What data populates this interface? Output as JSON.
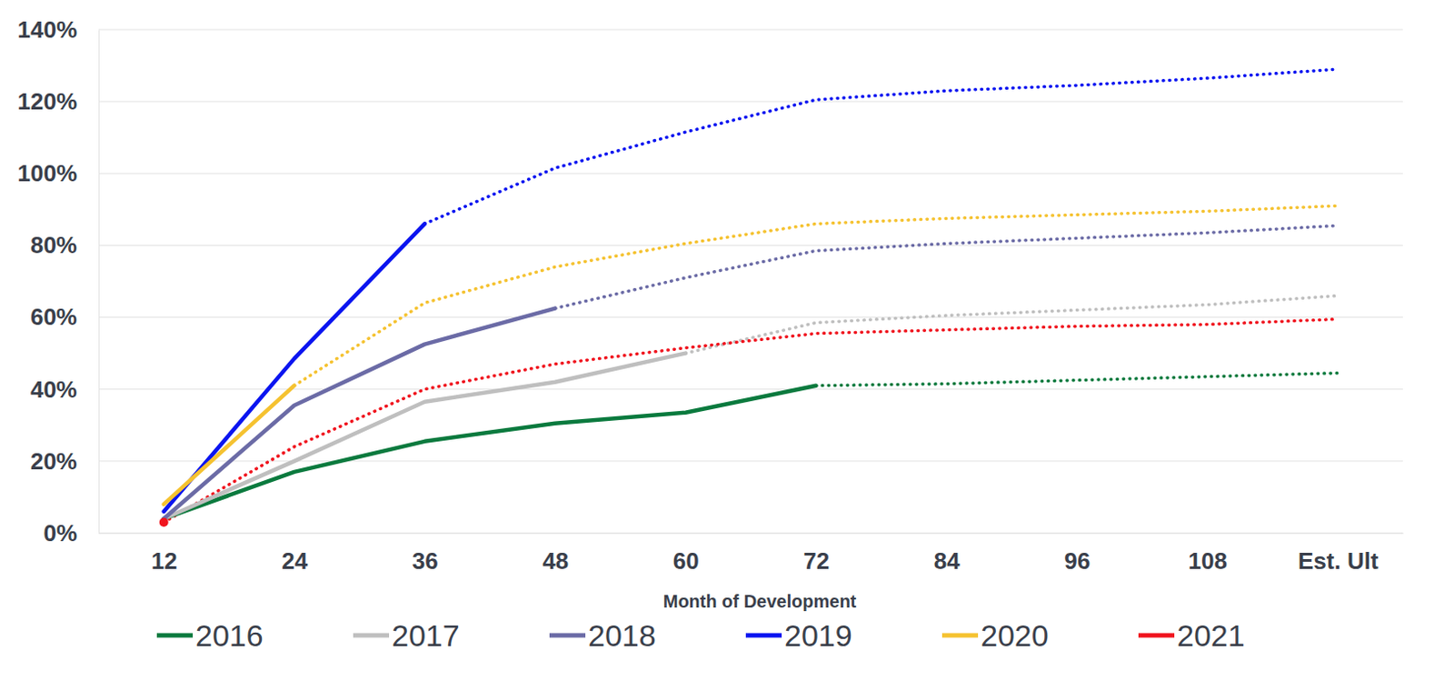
{
  "chart_data": {
    "type": "line",
    "x_label": "Month of Development",
    "categories": [
      "12",
      "24",
      "36",
      "48",
      "60",
      "72",
      "84",
      "96",
      "108",
      "Est. Ult"
    ],
    "ylim": [
      0,
      140
    ],
    "yticks": [
      {
        "value": 0,
        "label": "0%"
      },
      {
        "value": 20,
        "label": "20%"
      },
      {
        "value": 40,
        "label": "40%"
      },
      {
        "value": 60,
        "label": "60%"
      },
      {
        "value": 80,
        "label": "80%"
      },
      {
        "value": 100,
        "label": "100%"
      },
      {
        "value": 120,
        "label": "120%"
      },
      {
        "value": 140,
        "label": "140%"
      }
    ],
    "grid": true,
    "legend": "bottom",
    "series": [
      {
        "name": "2016",
        "color": "#0b7a3e",
        "values": [
          4,
          17,
          25.5,
          30.5,
          33.5,
          41,
          null,
          null,
          null,
          null
        ],
        "projected": [
          null,
          null,
          null,
          null,
          null,
          41,
          41.5,
          42.5,
          43.5,
          44.5
        ]
      },
      {
        "name": "2017",
        "color": "#bfbfbf",
        "values": [
          4,
          20,
          36.5,
          42,
          50,
          null,
          null,
          null,
          null,
          null
        ],
        "projected": [
          null,
          null,
          null,
          null,
          50,
          58.5,
          60.5,
          62,
          63.5,
          66
        ]
      },
      {
        "name": "2018",
        "color": "#6b6ba6",
        "values": [
          4,
          35.5,
          52.5,
          62.5,
          null,
          null,
          null,
          null,
          null,
          null
        ],
        "projected": [
          null,
          null,
          null,
          62.5,
          71,
          78.5,
          80.5,
          82,
          83.5,
          85.5
        ]
      },
      {
        "name": "2019",
        "color": "#0a14f0",
        "values": [
          6,
          48.5,
          86,
          null,
          null,
          null,
          null,
          null,
          null,
          null
        ],
        "projected": [
          null,
          null,
          86,
          101.5,
          111.5,
          120.5,
          123,
          124.5,
          126.5,
          129
        ]
      },
      {
        "name": "2020",
        "color": "#f5c230",
        "values": [
          8,
          41,
          null,
          null,
          null,
          null,
          null,
          null,
          null,
          null
        ],
        "projected": [
          null,
          41,
          64,
          74,
          80.5,
          86,
          87.5,
          88.5,
          89.5,
          91
        ]
      },
      {
        "name": "2021",
        "color": "#f0141e",
        "values": [
          3,
          null,
          null,
          null,
          null,
          null,
          null,
          null,
          null,
          null
        ],
        "projected": [
          3,
          24,
          40,
          47,
          51.5,
          55.5,
          56.5,
          57.5,
          58,
          59.5
        ]
      }
    ]
  }
}
